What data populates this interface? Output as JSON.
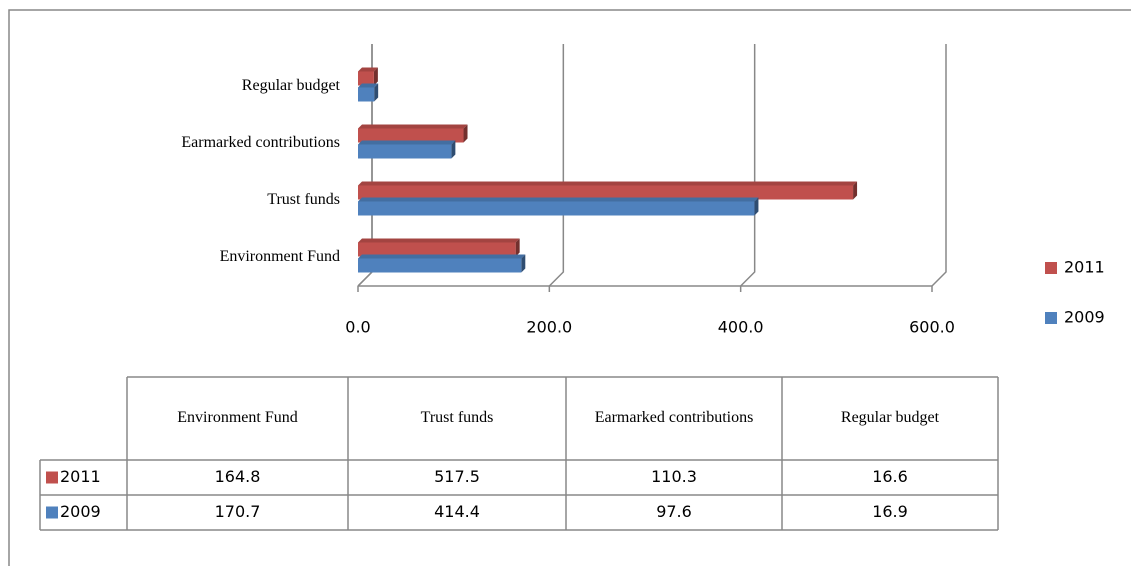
{
  "chart_data": {
    "type": "bar",
    "orientation": "horizontal",
    "categories": [
      "Environment Fund",
      "Trust funds",
      "Earmarked contributions",
      "Regular budget"
    ],
    "series": [
      {
        "name": "2011",
        "color": "#c0504d",
        "values": [
          164.8,
          517.5,
          110.3,
          16.6
        ]
      },
      {
        "name": "2009",
        "color": "#4f81bd",
        "values": [
          170.7,
          414.4,
          97.6,
          16.9
        ]
      }
    ],
    "xlim": [
      0,
      600
    ],
    "xticks": [
      {
        "value": 0,
        "label": "0.0"
      },
      {
        "value": 200,
        "label": "200.0"
      },
      {
        "value": 400,
        "label": "400.0"
      },
      {
        "value": 600,
        "label": "600.0"
      }
    ],
    "grid": true,
    "legend": "right",
    "data_table": true
  }
}
